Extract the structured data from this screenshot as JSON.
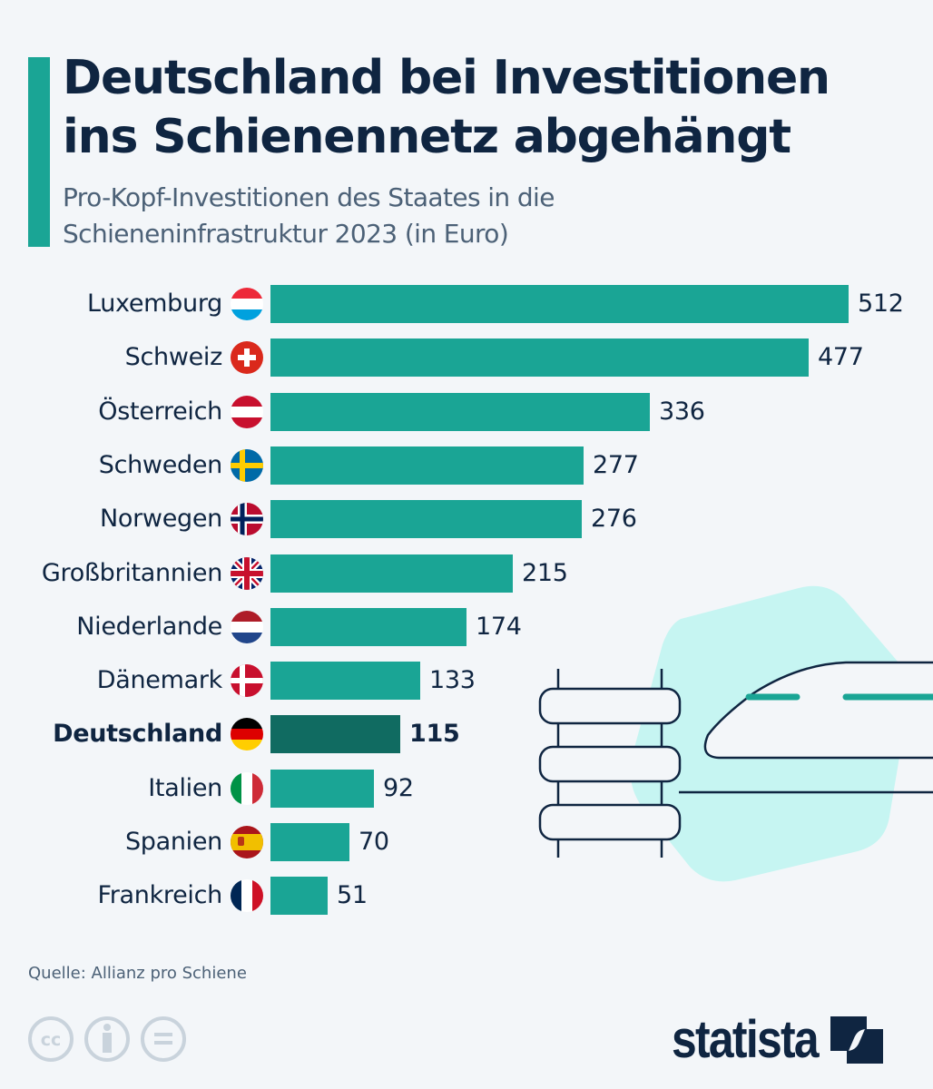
{
  "header": {
    "title_line1": "Deutschland bei Investitionen",
    "title_line2": "ins Schienennetz abgehängt",
    "subtitle_line1": "Pro-Kopf-Investitionen des Staates in die",
    "subtitle_line2": "Schieneninfrastruktur 2023 (in Euro)"
  },
  "colors": {
    "accent": "#1aa595",
    "highlight": "#106b61",
    "text": "#0f2541",
    "background": "#f3f6f9",
    "illustration_blob": "#c6f5f2"
  },
  "chart_data": {
    "type": "bar",
    "orientation": "horizontal",
    "title": "Deutschland bei Investitionen ins Schienennetz abgehängt",
    "subtitle": "Pro-Kopf-Investitionen des Staates in die Schieneninfrastruktur 2023 (in Euro)",
    "xlabel": "",
    "ylabel": "",
    "unit": "Euro",
    "xlim": [
      0,
      512
    ],
    "grid": false,
    "legend": "none",
    "highlight": "Deutschland",
    "categories": [
      "Luxemburg",
      "Schweiz",
      "Österreich",
      "Schweden",
      "Norwegen",
      "Großbritannien",
      "Niederlande",
      "Dänemark",
      "Deutschland",
      "Italien",
      "Spanien",
      "Frankreich"
    ],
    "flags": [
      "luxembourg-flag",
      "switzerland-flag",
      "austria-flag",
      "sweden-flag",
      "norway-flag",
      "uk-flag",
      "netherlands-flag",
      "denmark-flag",
      "germany-flag",
      "italy-flag",
      "spain-flag",
      "france-flag"
    ],
    "values": [
      512,
      477,
      336,
      277,
      276,
      215,
      174,
      133,
      115,
      92,
      70,
      51
    ]
  },
  "footer": {
    "source": "Quelle: Allianz pro Schiene",
    "license_icons": [
      "cc-icon",
      "attribution-icon",
      "no-derivatives-icon"
    ],
    "brand": "statista"
  }
}
